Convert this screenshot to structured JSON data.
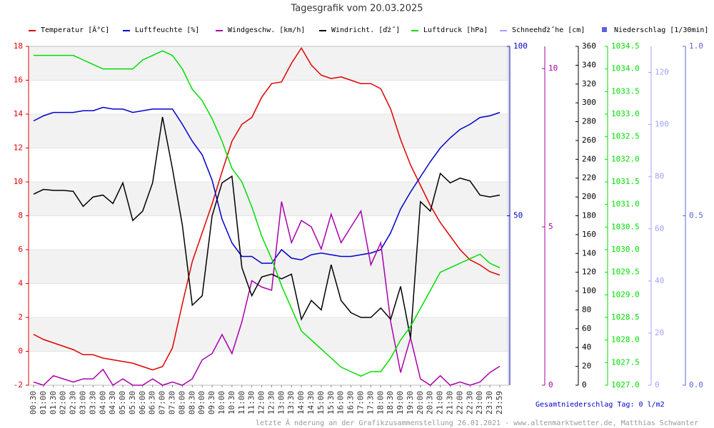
{
  "chart_data": {
    "type": "line",
    "title": "Tagesgrafik vom 20.03.2025",
    "categories": [
      "00:30",
      "01:00",
      "01:30",
      "02:00",
      "02:30",
      "03:00",
      "03:30",
      "04:00",
      "04:30",
      "05:00",
      "05:30",
      "06:00",
      "06:30",
      "07:00",
      "07:30",
      "08:00",
      "08:30",
      "09:00",
      "09:30",
      "10:00",
      "10:30",
      "11:00",
      "11:30",
      "12:00",
      "12:30",
      "13:00",
      "13:30",
      "14:00",
      "14:30",
      "15:00",
      "15:30",
      "16:00",
      "16:30",
      "17:00",
      "17:30",
      "18:00",
      "18:30",
      "19:00",
      "19:30",
      "20:00",
      "20:30",
      "21:00",
      "21:30",
      "22:00",
      "22:30",
      "23:00",
      "23:30",
      "23:59"
    ],
    "ylim": [
      -2,
      18
    ],
    "yticks": [
      -2,
      0,
      2,
      4,
      6,
      8,
      10,
      12,
      14,
      16,
      18
    ],
    "y2lim": [
      0,
      100
    ],
    "y2ticks": [
      50,
      100
    ],
    "y3lim": [
      0,
      10.7
    ],
    "y3ticks": [
      0,
      5,
      10
    ],
    "y4lim": [
      0,
      360
    ],
    "y4ticks": [
      0,
      20,
      40,
      60,
      80,
      100,
      120,
      140,
      160,
      180,
      200,
      220,
      240,
      260,
      280,
      300,
      320,
      340,
      360
    ],
    "y5lim": [
      1027,
      1034.5
    ],
    "y5ticks": [
      {
        "value": 1027,
        "label": "1027.0"
      },
      1027.5,
      {
        "value": 1028,
        "label": "1028.0"
      },
      1028.5,
      {
        "value": 1029,
        "label": "1029.0"
      },
      1029.5,
      {
        "value": 1030,
        "label": "1030.0"
      },
      1030.5,
      {
        "value": 1031,
        "label": "1031.0"
      },
      1031.5,
      {
        "value": 1032,
        "label": "1032.0"
      },
      1032.5,
      {
        "value": 1033,
        "label": "1033.0"
      },
      1033.5,
      {
        "value": 1034,
        "label": "1034.0"
      },
      1034.5
    ],
    "y6lim": [
      0,
      130
    ],
    "y6ticks": [
      0,
      20,
      40,
      60,
      80,
      100,
      120
    ],
    "y7lim": [
      0,
      1
    ],
    "y7ticks": [
      {
        "value": 0,
        "label": "0.0"
      },
      0.5,
      {
        "value": 1,
        "label": "1.0"
      }
    ],
    "grid": true,
    "series": [
      {
        "name": "Temperatur [Â°C]",
        "color": "#e00000",
        "axis": "y",
        "values": [
          1.0,
          0.7,
          0.5,
          0.3,
          0.1,
          -0.2,
          -0.2,
          -0.4,
          -0.5,
          -0.6,
          -0.7,
          -0.9,
          -1.1,
          -0.9,
          0.2,
          2.8,
          5.3,
          7.0,
          8.7,
          10.6,
          12.4,
          13.4,
          13.8,
          15.0,
          15.8,
          15.9,
          17.0,
          17.9,
          16.9,
          16.3,
          16.1,
          16.2,
          16.0,
          15.8,
          15.8,
          15.5,
          14.3,
          12.5,
          11.0,
          9.8,
          8.6,
          7.6,
          6.8,
          6.0,
          5.4,
          5.1,
          4.7,
          4.5
        ]
      },
      {
        "name": "Luftfeuchte [%]",
        "color": "#0000cc",
        "axis": "y2",
        "values": [
          78,
          79.5,
          80.5,
          80.5,
          80.5,
          81,
          81,
          82,
          81.5,
          81.5,
          80.5,
          81,
          81.5,
          81.5,
          81.5,
          77,
          72,
          68,
          60.5,
          49,
          42,
          38,
          38,
          36,
          36,
          40,
          37.5,
          37,
          38.5,
          39,
          38.5,
          38,
          38,
          38.5,
          39,
          40,
          45,
          52,
          57,
          61.5,
          66,
          70,
          73,
          75.5,
          77,
          79,
          79.5,
          80.5
        ]
      },
      {
        "name": "Windgeschw. [km/h]",
        "color": "#aa00aa",
        "axis": "y3",
        "values": [
          0.1,
          0,
          0.3,
          0.2,
          0.1,
          0.2,
          0.2,
          0.5,
          0,
          0.2,
          0,
          0,
          0.2,
          0,
          0.1,
          0,
          0.2,
          0.8,
          1.0,
          1.6,
          1.0,
          2.0,
          3.3,
          3.1,
          3.0,
          5.8,
          4.5,
          5.2,
          5.0,
          4.3,
          5.4,
          4.5,
          5.0,
          5.5,
          3.8,
          4.5,
          2.0,
          0.4,
          1.5,
          0.2,
          0,
          0.3,
          0,
          0.1,
          0,
          0.1,
          0.4,
          0.6
        ]
      },
      {
        "name": "Windricht. [ďż˝]",
        "color": "#000000",
        "axis": "y4",
        "values": [
          203,
          208,
          207,
          207,
          206,
          190,
          200,
          202,
          193,
          215,
          175,
          185,
          215,
          285,
          230,
          170,
          85,
          95,
          180,
          215,
          222,
          125,
          95,
          115,
          118,
          113,
          118,
          70,
          90,
          80,
          128,
          90,
          77,
          72,
          72,
          82,
          70,
          105,
          50,
          195,
          185,
          225,
          215,
          220,
          217,
          202,
          200,
          202
        ]
      },
      {
        "name": "Luftdruck [hPa]",
        "color": "#00dd00",
        "axis": "y5",
        "values": [
          1034.3,
          1034.3,
          1034.3,
          1034.3,
          1034.3,
          1034.2,
          1034.1,
          1034.0,
          1034.0,
          1034.0,
          1034.0,
          1034.2,
          1034.3,
          1034.4,
          1034.3,
          1034.0,
          1033.55,
          1033.3,
          1032.9,
          1032.4,
          1031.8,
          1031.5,
          1030.95,
          1030.3,
          1029.8,
          1029.2,
          1028.7,
          1028.2,
          1028.0,
          1027.8,
          1027.6,
          1027.4,
          1027.3,
          1027.2,
          1027.3,
          1027.3,
          1027.6,
          1028.0,
          1028.3,
          1028.7,
          1029.1,
          1029.5,
          1029.6,
          1029.7,
          1029.8,
          1029.9,
          1029.7,
          1029.6
        ]
      },
      {
        "name": "Schneehďż˝he [cm]",
        "color": "#a0a0ff",
        "axis": "y6"
      },
      {
        "name": "Niederschlag [1/30min]",
        "color": "#6060e0",
        "axis": "y7"
      }
    ],
    "total_label": "Gesamtniederschlag Tag: 0 l/m2",
    "footer": "letzte Ă nderung an der Grafikzusammenstellung 26.01.2021 - www.altenmarktwetter.de, Matthias Schwanter"
  }
}
